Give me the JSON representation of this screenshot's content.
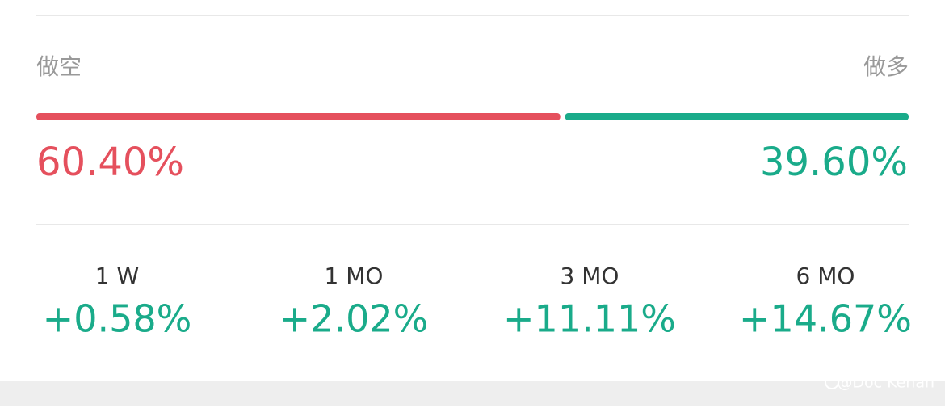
{
  "sentiment": {
    "short": {
      "label": "做空",
      "value": 60.4,
      "value_label": "60.40%",
      "color": "#e5505d"
    },
    "long": {
      "label": "做多",
      "value": 39.6,
      "value_label": "39.60%",
      "color": "#1aab8a"
    }
  },
  "periods": [
    {
      "label": "1 W",
      "change": "+0.58%"
    },
    {
      "label": "1 MO",
      "change": "+2.02%"
    },
    {
      "label": "3 MO",
      "change": "+11.11%"
    },
    {
      "label": "6 MO",
      "change": "+14.67%"
    }
  ],
  "watermark": "@Doc Kenan"
}
